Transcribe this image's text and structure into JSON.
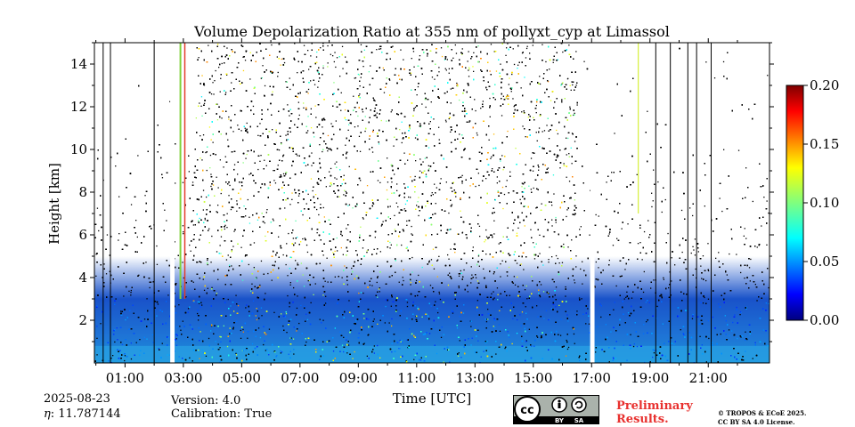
{
  "chart_data": {
    "type": "heatmap",
    "title": "Volume Depolarization Ratio at 355 nm of pollyxt_cyp at Limassol",
    "xlabel": "Time [UTC]",
    "ylabel": "Height [km]",
    "x_ticks": [
      "01:00",
      "03:00",
      "05:00",
      "07:00",
      "09:00",
      "11:00",
      "13:00",
      "15:00",
      "17:00",
      "19:00",
      "21:00"
    ],
    "x_tick_hours": [
      1,
      3,
      5,
      7,
      9,
      11,
      13,
      15,
      17,
      19,
      21
    ],
    "xlim_hours": [
      -0.05,
      23.1
    ],
    "y_ticks": [
      "2",
      "4",
      "6",
      "8",
      "10",
      "12",
      "14"
    ],
    "y_tick_values": [
      2,
      4,
      6,
      8,
      10,
      12,
      14
    ],
    "ylim": [
      0,
      15
    ],
    "colorbar": {
      "ticks": [
        "0.00",
        "0.05",
        "0.10",
        "0.15",
        "0.20"
      ],
      "tick_values": [
        0,
        0.05,
        0.1,
        0.15,
        0.2
      ],
      "range": [
        0,
        0.2
      ],
      "colormap": "jet"
    },
    "data_gaps_hours": [
      [
        2.55,
        2.7
      ],
      [
        16.95,
        17.1
      ]
    ],
    "features": {
      "depolarization_background": 0.02,
      "near_surface_layer_top_km": 2.5,
      "noise_floor_top_km": 5.0,
      "dense_signal_period_hours": [
        3.3,
        16.5
      ],
      "elevated_depolarization_streak_hour": 18.6
    }
  },
  "footer": {
    "date": "2025-08-23",
    "eta": "11.787144",
    "version": "Version: 4.0",
    "calibration": "Calibration: True",
    "license_badge": "CC BY SA",
    "preliminary": [
      "Preliminary",
      "Results."
    ],
    "copyright": [
      "© TROPOS & ECoE 2025.",
      "CC BY SA 4.0 License."
    ]
  }
}
